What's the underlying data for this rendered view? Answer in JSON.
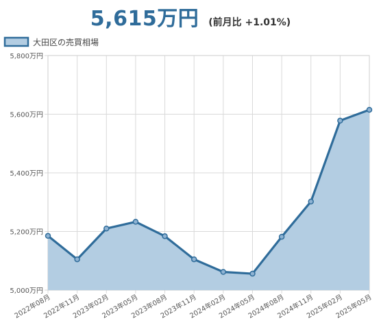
{
  "header": {
    "price": "5,615万円",
    "change": "(前月比 +1.01%)"
  },
  "colors": {
    "line": "#2f6c9a",
    "fill": "#b3cde2",
    "grid": "#d9d9d9",
    "price": "#2f6c9a"
  },
  "chart_data": {
    "type": "area",
    "series": [
      {
        "name": "大田区の売買相場",
        "values": [
          5185,
          5105,
          5210,
          5233,
          5184,
          5105,
          5062,
          5056,
          5182,
          5302,
          5578,
          5615
        ]
      }
    ],
    "x_ticks": [
      "2022年08月",
      "2022年11月",
      "2023年02月",
      "2023年05月",
      "2023年08月",
      "2023年11月",
      "2024年02月",
      "2024年05月",
      "2024年08月",
      "2024年11月",
      "2025年02月",
      "2025年05月"
    ],
    "y_ticks": [
      {
        "value": 5000,
        "label": "5,000万円"
      },
      {
        "value": 5200,
        "label": "5,200万円"
      },
      {
        "value": 5400,
        "label": "5,400万円"
      },
      {
        "value": 5600,
        "label": "5,600万円"
      },
      {
        "value": 5800,
        "label": "5,800万円"
      }
    ],
    "ylim": [
      5000,
      5800
    ],
    "legend_position": "top-left",
    "grid": true
  }
}
